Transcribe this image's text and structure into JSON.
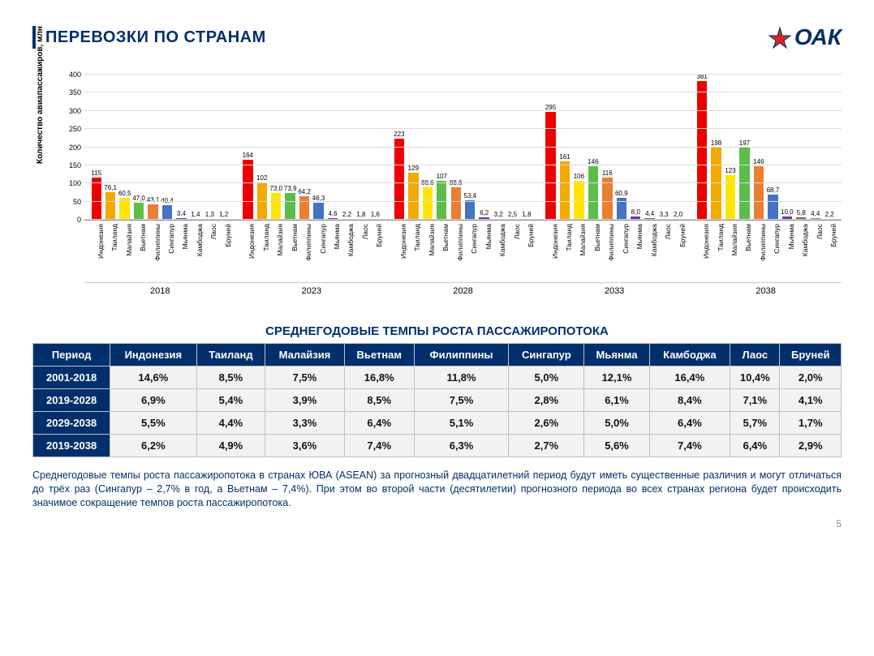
{
  "page": {
    "title": "ПЕРЕВОЗКИ ПО СТРАНАМ",
    "logo_text": "ОАК",
    "page_number": "5"
  },
  "chart": {
    "type": "bar",
    "ylabel": "Количество авиапассажиров, млн",
    "ylim": [
      0,
      400
    ],
    "ytick_step": 50,
    "yticks": [
      0,
      50,
      100,
      150,
      200,
      250,
      300,
      350,
      400
    ],
    "background_color": "#ffffff",
    "grid_color": "#dcdcdc",
    "label_fontsize": 8,
    "categories": [
      "Индонезия",
      "Таиланд",
      "Малайзия",
      "Вьетнам",
      "Филиппины",
      "Сингапур",
      "Мьянма",
      "Камбоджа",
      "Лаос",
      "Бруней"
    ],
    "bar_colors": [
      "#ee0000",
      "#f2a900",
      "#ffe500",
      "#5bbd4a",
      "#ed7d31",
      "#4472c4",
      "#7030a0",
      "#8c5c3b",
      "#7f7f7f",
      "#a0a0a0"
    ],
    "years": [
      "2018",
      "2023",
      "2028",
      "2033",
      "2038"
    ],
    "data": {
      "2018": [
        115,
        76.1,
        60.5,
        47.0,
        43.1,
        40.4,
        3.4,
        1.4,
        1.3,
        1.2
      ],
      "2023": [
        164,
        102,
        73.0,
        73.9,
        64.2,
        46.3,
        4.6,
        2.2,
        1.8,
        1.6
      ],
      "2028": [
        223,
        129,
        88.6,
        107,
        88.6,
        53.4,
        6.2,
        3.2,
        2.5,
        1.8
      ],
      "2033": [
        295,
        161,
        106,
        146,
        116,
        60.9,
        8.0,
        4.4,
        3.3,
        2.0
      ],
      "2038": [
        381,
        198,
        123,
        197,
        146,
        68.7,
        10.0,
        5.8,
        4.4,
        2.2
      ]
    },
    "value_labels": {
      "2018": [
        "115",
        "76,1",
        "60,5",
        "47,0",
        "43,1",
        "40,4",
        "3,4",
        "1,4",
        "1,3",
        "1,2"
      ],
      "2023": [
        "164",
        "102",
        "73,0",
        "73,9",
        "64,2",
        "46,3",
        "4,6",
        "2,2",
        "1,8",
        "1,6"
      ],
      "2028": [
        "223",
        "129",
        "88,6",
        "107",
        "88,6",
        "53,4",
        "6,2",
        "3,2",
        "2,5",
        "1,8"
      ],
      "2033": [
        "295",
        "161",
        "106",
        "146",
        "116",
        "60,9",
        "8,0",
        "4,4",
        "3,3",
        "2,0"
      ],
      "2038": [
        "381",
        "198",
        "123",
        "197",
        "146",
        "68,7",
        "10,0",
        "5,8",
        "4,4",
        "2,2"
      ]
    }
  },
  "table": {
    "title": "СРЕДНЕГОДОВЫЕ ТЕМПЫ РОСТА ПАССАЖИРОПОТОКА",
    "header_bg": "#002f6c",
    "header_fg": "#ffffff",
    "cell_bg": "#f2f2f2",
    "columns": [
      "Период",
      "Индонезия",
      "Таиланд",
      "Малайзия",
      "Вьетнам",
      "Филиппины",
      "Сингапур",
      "Мьянма",
      "Камбоджа",
      "Лаос",
      "Бруней"
    ],
    "rows": [
      [
        "2001-2018",
        "14,6%",
        "8,5%",
        "7,5%",
        "16,8%",
        "11,8%",
        "5,0%",
        "12,1%",
        "16,4%",
        "10,4%",
        "2,0%"
      ],
      [
        "2019-2028",
        "6,9%",
        "5,4%",
        "3,9%",
        "8,5%",
        "7,5%",
        "2,8%",
        "6,1%",
        "8,4%",
        "7,1%",
        "4,1%"
      ],
      [
        "2029-2038",
        "5,5%",
        "4,4%",
        "3,3%",
        "6,4%",
        "5,1%",
        "2,6%",
        "5,0%",
        "6,4%",
        "5,7%",
        "1,7%"
      ],
      [
        "2019-2038",
        "6,2%",
        "4,9%",
        "3,6%",
        "7,4%",
        "6,3%",
        "2,7%",
        "5,6%",
        "7,4%",
        "6,4%",
        "2,9%"
      ]
    ]
  },
  "note": "Среднегодовые темпы роста пассажиропотока в странах ЮВА (ASEAN) за прогнозный двадцатилетний период будут иметь существенные различия и могут отличаться до трёх раз (Сингапур – 2,7% в год, а Вьетнам – 7,4%). При этом во второй части (десятилетии) прогнозного периода во всех странах региона будет происходить значимое сокращение темпов роста пассажиропотока."
}
